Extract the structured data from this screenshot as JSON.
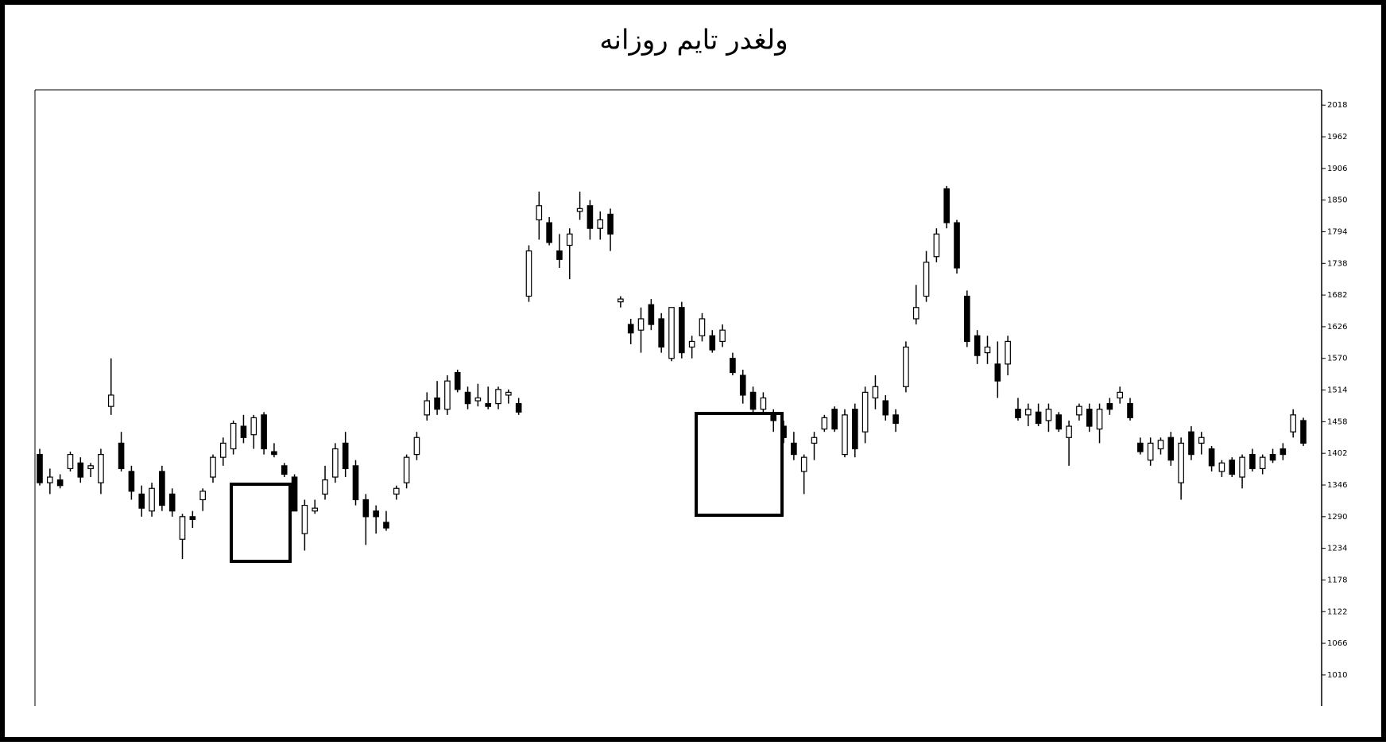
{
  "chart_data": {
    "type": "candlestick",
    "title": "ولغدر تایم روزانه",
    "open": [
      1400,
      1350,
      1355,
      1375,
      1385,
      1375,
      1350,
      1485,
      1420,
      1370,
      1330,
      1300,
      1370,
      1330,
      1250,
      1290,
      1320,
      1360,
      1395,
      1410,
      1450,
      1435,
      1470,
      1405,
      1380,
      1360,
      1260,
      1300,
      1330,
      1360,
      1420,
      1380,
      1320,
      1300,
      1280,
      1330,
      1350,
      1400,
      1470,
      1500,
      1480,
      1545,
      1510,
      1495,
      1490,
      1490,
      1505,
      1490,
      1680,
      1815,
      1810,
      1760,
      1770,
      1830,
      1840,
      1800,
      1825,
      1670,
      1630,
      1620,
      1665,
      1640,
      1570,
      1660,
      1590,
      1610,
      1610,
      1600,
      1570,
      1540,
      1510,
      1480,
      1470,
      1450,
      1420,
      1370,
      1420,
      1445,
      1480,
      1400,
      1480,
      1440,
      1500,
      1495,
      1470,
      1520,
      1640,
      1680,
      1750,
      1870,
      1810,
      1680,
      1610,
      1580,
      1560,
      1560,
      1480,
      1470,
      1475,
      1460,
      1470,
      1430,
      1470,
      1480,
      1445,
      1490,
      1500,
      1490,
      1420,
      1390,
      1410,
      1430,
      1350,
      1440,
      1420,
      1410,
      1370,
      1390,
      1360,
      1400,
      1375,
      1400,
      1410,
      1440,
      1460
    ],
    "high": [
      1410,
      1375,
      1365,
      1405,
      1395,
      1385,
      1410,
      1570,
      1440,
      1380,
      1345,
      1350,
      1380,
      1340,
      1295,
      1300,
      1340,
      1400,
      1430,
      1460,
      1470,
      1470,
      1475,
      1420,
      1385,
      1365,
      1320,
      1320,
      1380,
      1420,
      1440,
      1390,
      1330,
      1310,
      1300,
      1345,
      1400,
      1440,
      1510,
      1530,
      1540,
      1550,
      1520,
      1525,
      1520,
      1520,
      1515,
      1500,
      1770,
      1865,
      1820,
      1790,
      1800,
      1865,
      1850,
      1830,
      1835,
      1680,
      1640,
      1660,
      1675,
      1650,
      1660,
      1670,
      1610,
      1650,
      1620,
      1630,
      1580,
      1550,
      1520,
      1510,
      1480,
      1460,
      1440,
      1400,
      1440,
      1470,
      1485,
      1480,
      1490,
      1520,
      1540,
      1505,
      1480,
      1600,
      1700,
      1760,
      1800,
      1875,
      1815,
      1690,
      1620,
      1610,
      1600,
      1610,
      1500,
      1490,
      1490,
      1490,
      1475,
      1460,
      1490,
      1490,
      1490,
      1500,
      1520,
      1500,
      1430,
      1430,
      1430,
      1440,
      1430,
      1450,
      1440,
      1415,
      1390,
      1395,
      1400,
      1410,
      1400,
      1410,
      1420,
      1480,
      1465
    ],
    "low": [
      1345,
      1330,
      1340,
      1370,
      1350,
      1360,
      1330,
      1470,
      1370,
      1320,
      1290,
      1290,
      1300,
      1290,
      1215,
      1270,
      1300,
      1350,
      1380,
      1400,
      1420,
      1410,
      1400,
      1395,
      1360,
      1300,
      1230,
      1295,
      1320,
      1350,
      1360,
      1310,
      1240,
      1260,
      1265,
      1320,
      1340,
      1390,
      1460,
      1470,
      1470,
      1510,
      1480,
      1485,
      1480,
      1480,
      1490,
      1470,
      1670,
      1780,
      1770,
      1730,
      1710,
      1815,
      1780,
      1780,
      1760,
      1660,
      1595,
      1580,
      1620,
      1580,
      1565,
      1570,
      1570,
      1600,
      1580,
      1590,
      1540,
      1490,
      1470,
      1470,
      1440,
      1420,
      1390,
      1330,
      1390,
      1440,
      1440,
      1395,
      1395,
      1420,
      1480,
      1460,
      1440,
      1510,
      1630,
      1670,
      1740,
      1800,
      1720,
      1590,
      1560,
      1560,
      1500,
      1540,
      1460,
      1450,
      1450,
      1440,
      1440,
      1380,
      1460,
      1440,
      1420,
      1470,
      1490,
      1460,
      1400,
      1380,
      1400,
      1380,
      1320,
      1390,
      1400,
      1370,
      1360,
      1360,
      1340,
      1370,
      1365,
      1385,
      1390,
      1430,
      1415
    ],
    "close": [
      1350,
      1360,
      1345,
      1400,
      1360,
      1380,
      1400,
      1505,
      1375,
      1335,
      1305,
      1340,
      1310,
      1300,
      1290,
      1285,
      1335,
      1395,
      1420,
      1455,
      1430,
      1465,
      1410,
      1400,
      1365,
      1300,
      1310,
      1305,
      1355,
      1410,
      1375,
      1320,
      1290,
      1290,
      1270,
      1340,
      1395,
      1430,
      1495,
      1480,
      1530,
      1515,
      1490,
      1500,
      1485,
      1515,
      1510,
      1475,
      1760,
      1840,
      1775,
      1745,
      1790,
      1835,
      1800,
      1815,
      1790,
      1675,
      1615,
      1640,
      1630,
      1590,
      1660,
      1580,
      1600,
      1640,
      1585,
      1620,
      1545,
      1505,
      1480,
      1500,
      1460,
      1430,
      1400,
      1395,
      1430,
      1465,
      1445,
      1470,
      1410,
      1510,
      1520,
      1470,
      1455,
      1590,
      1660,
      1740,
      1790,
      1810,
      1730,
      1600,
      1575,
      1590,
      1530,
      1600,
      1465,
      1480,
      1455,
      1480,
      1445,
      1450,
      1485,
      1450,
      1480,
      1480,
      1510,
      1465,
      1405,
      1420,
      1425,
      1390,
      1420,
      1400,
      1430,
      1380,
      1385,
      1365,
      1395,
      1375,
      1395,
      1390,
      1400,
      1470,
      1420
    ],
    "ylim": [
      955,
      2045
    ],
    "yticks": [
      2018,
      1962,
      1906,
      1850,
      1794,
      1738,
      1682,
      1626,
      1570,
      1514,
      1458,
      1402,
      1346,
      1290,
      1234,
      1178,
      1122,
      1066,
      1010
    ],
    "up_color": "#ffffff",
    "down_color": "#000000"
  }
}
